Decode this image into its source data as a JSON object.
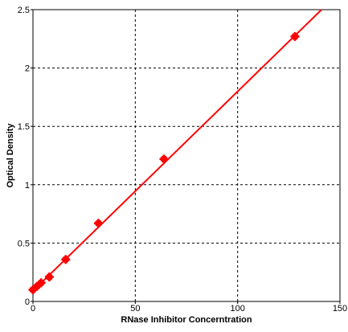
{
  "chart_data": {
    "type": "scatter",
    "title": "",
    "xlabel": "RNase Inhibitor Concerntration",
    "ylabel": "Optical Density",
    "xlim": [
      0,
      150
    ],
    "ylim": [
      0,
      2.5
    ],
    "x_ticks": [
      0,
      50,
      100,
      150
    ],
    "y_ticks": [
      0,
      0.5,
      1,
      1.5,
      2,
      2.5
    ],
    "x_tick_labels": [
      "0",
      "50",
      "100",
      "150"
    ],
    "y_tick_labels": [
      "0",
      "0.5",
      "1",
      "1.5",
      "2",
      "2.5"
    ],
    "grid": true,
    "series": [
      {
        "color": "#ff0000",
        "points": [
          {
            "x": 0,
            "y": 0.1
          },
          {
            "x": 2,
            "y": 0.13
          },
          {
            "x": 4,
            "y": 0.16
          },
          {
            "x": 8,
            "y": 0.21
          },
          {
            "x": 16,
            "y": 0.36
          },
          {
            "x": 32,
            "y": 0.67
          },
          {
            "x": 64,
            "y": 1.22
          },
          {
            "x": 128,
            "y": 2.27
          }
        ],
        "fit_line": [
          {
            "x": 0,
            "y": 0.09
          },
          {
            "x": 141,
            "y": 2.5
          }
        ]
      }
    ]
  }
}
